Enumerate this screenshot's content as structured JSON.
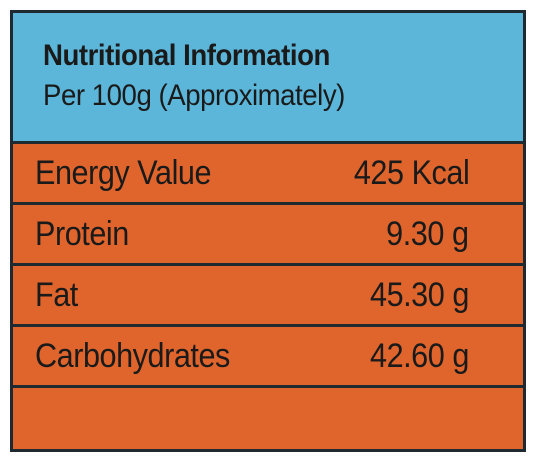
{
  "header": {
    "title": "Nutritional Information",
    "subtitle": "Per 100g (Approximately)"
  },
  "colors": {
    "header_bg": "#5bb6d9",
    "body_bg": "#e0652d",
    "border": "#1f2a30"
  },
  "rows": [
    {
      "label": "Energy Value",
      "value": "425 Kcal"
    },
    {
      "label": "Protein",
      "value": "9.30 g"
    },
    {
      "label": "Fat",
      "value": "45.30 g"
    },
    {
      "label": "Carbohydrates",
      "value": "42.60 g"
    },
    {
      "label": "",
      "value": ""
    }
  ]
}
